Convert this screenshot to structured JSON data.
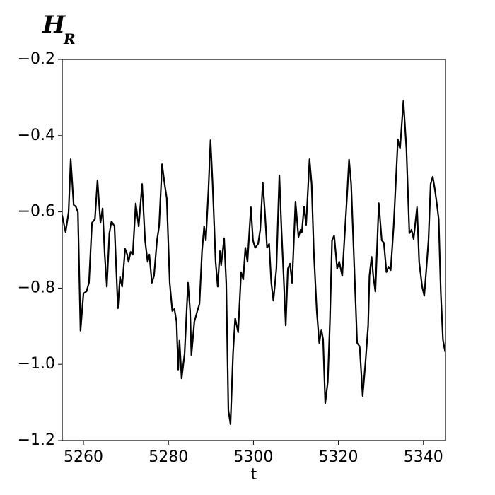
{
  "chart_data": {
    "type": "line",
    "title": "H",
    "title_subscript": "R",
    "xlabel": "t",
    "xlim": [
      5255,
      5345.2
    ],
    "ylim": [
      -1.2,
      -0.2
    ],
    "xticks": [
      5260,
      5280,
      5300,
      5320,
      5340
    ],
    "yticks": [
      {
        "value": -1.2,
        "label": "−1.2"
      },
      {
        "value": -1.0,
        "label": "−1.0"
      },
      {
        "value": -0.8,
        "label": "−0.8"
      },
      {
        "value": -0.6,
        "label": "−0.6"
      },
      {
        "value": -0.4,
        "label": "−0.4"
      },
      {
        "value": -0.2,
        "label": "−0.2"
      }
    ],
    "grid": false,
    "series": [
      {
        "color": "#000000",
        "x": [
          5255.0,
          5255.8,
          5256.5,
          5257.0,
          5257.7,
          5258.2,
          5258.7,
          5259.3,
          5260.0,
          5260.7,
          5261.3,
          5262.0,
          5262.7,
          5263.3,
          5264.0,
          5264.5,
          5265.0,
          5265.5,
          5266.1,
          5266.6,
          5267.3,
          5268.1,
          5268.6,
          5269.1,
          5269.8,
          5270.3,
          5270.6,
          5271.1,
          5271.6,
          5272.3,
          5273.0,
          5273.8,
          5274.5,
          5275.1,
          5275.5,
          5276.1,
          5276.6,
          5277.3,
          5277.8,
          5278.5,
          5279.1,
          5279.6,
          5280.3,
          5280.9,
          5281.4,
          5281.9,
          5282.3,
          5282.6,
          5283.1,
          5283.8,
          5284.6,
          5285.1,
          5285.4,
          5286.1,
          5286.8,
          5287.3,
          5287.9,
          5288.4,
          5288.8,
          5289.4,
          5289.9,
          5290.4,
          5291.1,
          5291.6,
          5292.1,
          5292.4,
          5293.1,
          5293.6,
          5294.1,
          5294.6,
          5295.2,
          5295.7,
          5296.4,
          5297.1,
          5297.6,
          5298.1,
          5298.6,
          5299.4,
          5299.9,
          5300.4,
          5301.1,
          5301.6,
          5302.2,
          5302.7,
          5303.2,
          5303.7,
          5304.2,
          5304.7,
          5305.4,
          5306.1,
          5306.6,
          5307.1,
          5307.6,
          5308.1,
          5308.6,
          5309.1,
          5309.9,
          5310.6,
          5311.1,
          5311.4,
          5311.9,
          5312.4,
          5313.2,
          5313.7,
          5314.2,
          5314.9,
          5315.5,
          5316.0,
          5316.4,
          5316.9,
          5317.5,
          5318.0,
          5318.5,
          5319.0,
          5319.7,
          5320.2,
          5320.9,
          5321.5,
          5322.0,
          5322.5,
          5323.0,
          5323.5,
          5324.4,
          5325.0,
          5325.7,
          5326.4,
          5327.0,
          5327.3,
          5327.8,
          5328.2,
          5328.7,
          5329.5,
          5330.2,
          5330.7,
          5331.3,
          5331.8,
          5332.3,
          5333.0,
          5334.0,
          5334.5,
          5335.3,
          5336.0,
          5336.7,
          5337.2,
          5337.7,
          5338.5,
          5339.0,
          5339.7,
          5340.2,
          5340.7,
          5341.2,
          5341.7,
          5342.2,
          5342.7,
          5343.2,
          5343.6,
          5344.1,
          5344.6,
          5345.1
        ],
        "values": [
          -0.61,
          -0.653,
          -0.601,
          -0.462,
          -0.582,
          -0.586,
          -0.601,
          -0.912,
          -0.814,
          -0.809,
          -0.786,
          -0.629,
          -0.619,
          -0.517,
          -0.629,
          -0.591,
          -0.712,
          -0.796,
          -0.656,
          -0.625,
          -0.638,
          -0.853,
          -0.771,
          -0.796,
          -0.697,
          -0.712,
          -0.731,
          -0.705,
          -0.712,
          -0.578,
          -0.638,
          -0.527,
          -0.675,
          -0.731,
          -0.712,
          -0.786,
          -0.768,
          -0.675,
          -0.638,
          -0.475,
          -0.527,
          -0.564,
          -0.786,
          -0.86,
          -0.855,
          -0.888,
          -1.014,
          -0.938,
          -1.037,
          -0.972,
          -0.786,
          -0.86,
          -0.976,
          -0.888,
          -0.86,
          -0.842,
          -0.703,
          -0.638,
          -0.675,
          -0.545,
          -0.412,
          -0.527,
          -0.731,
          -0.796,
          -0.703,
          -0.74,
          -0.669,
          -0.786,
          -1.12,
          -1.157,
          -0.972,
          -0.879,
          -0.916,
          -0.758,
          -0.777,
          -0.694,
          -0.731,
          -0.588,
          -0.675,
          -0.694,
          -0.684,
          -0.647,
          -0.523,
          -0.601,
          -0.694,
          -0.684,
          -0.786,
          -0.833,
          -0.749,
          -0.504,
          -0.647,
          -0.768,
          -0.898,
          -0.749,
          -0.736,
          -0.786,
          -0.573,
          -0.666,
          -0.647,
          -0.653,
          -0.586,
          -0.634,
          -0.462,
          -0.527,
          -0.703,
          -0.86,
          -0.944,
          -0.909,
          -0.935,
          -1.102,
          -1.046,
          -0.888,
          -0.675,
          -0.662,
          -0.749,
          -0.731,
          -0.768,
          -0.656,
          -0.564,
          -0.463,
          -0.527,
          -0.675,
          -0.944,
          -0.953,
          -1.083,
          -0.99,
          -0.898,
          -0.768,
          -0.718,
          -0.768,
          -0.809,
          -0.577,
          -0.675,
          -0.681,
          -0.758,
          -0.744,
          -0.753,
          -0.638,
          -0.41,
          -0.434,
          -0.309,
          -0.434,
          -0.656,
          -0.647,
          -0.671,
          -0.588,
          -0.731,
          -0.796,
          -0.82,
          -0.749,
          -0.675,
          -0.527,
          -0.508,
          -0.541,
          -0.582,
          -0.619,
          -0.814,
          -0.935,
          -0.966
        ]
      }
    ]
  }
}
